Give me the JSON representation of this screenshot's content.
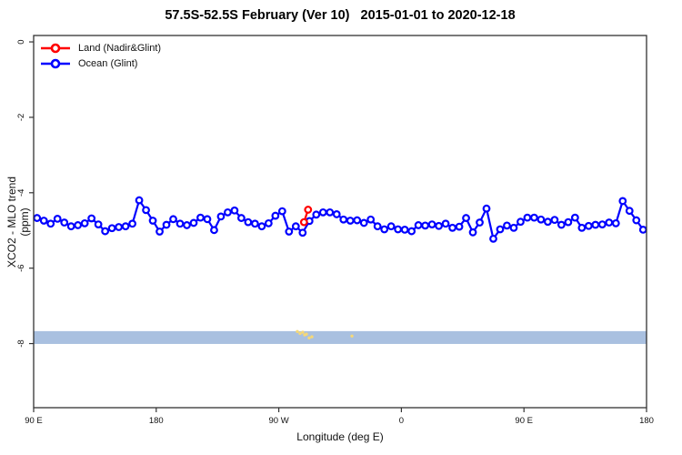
{
  "title": "57.5S-52.5S February (Ver 10)   2015-01-01 to 2020-12-18",
  "legend": {
    "items": [
      {
        "label": "Land (Nadir&Glint)",
        "color": "#ff0000",
        "marker": "open-circle-on-line"
      },
      {
        "label": "Ocean (Glint)",
        "color": "#0000ff",
        "marker": "open-circle-on-line"
      }
    ]
  },
  "chart_data": {
    "type": "line",
    "title": "57.5S-52.5S February (Ver 10)   2015-01-01 to 2020-12-18",
    "xlabel": "Longitude (deg E)",
    "ylabel": "XCO2 - MLO trend (ppm)",
    "xlim": [
      90,
      540
    ],
    "ylim": [
      -9.7,
      0.17
    ],
    "grid": false,
    "legend_position": "top-left-inside",
    "x_ticks": [
      {
        "value": 90,
        "label": "90 E"
      },
      {
        "value": 180,
        "label": "180"
      },
      {
        "value": 270,
        "label": "90 W"
      },
      {
        "value": 360,
        "label": "0"
      },
      {
        "value": 450,
        "label": "90 E"
      },
      {
        "value": 540,
        "label": "180"
      }
    ],
    "y_ticks": [
      {
        "value": 0,
        "label": "0"
      },
      {
        "value": -2,
        "label": "-2"
      },
      {
        "value": -4,
        "label": "-4"
      },
      {
        "value": -6,
        "label": "-6"
      },
      {
        "value": -8,
        "label": "-8"
      }
    ],
    "band": {
      "from": -7.67,
      "to": -8.01,
      "color": "#a9c0e0"
    },
    "scatter_dots": {
      "color": "#f5d878",
      "points": [
        [
          283.6,
          -7.68
        ],
        [
          285.6,
          -7.73
        ],
        [
          287.6,
          -7.7
        ],
        [
          289.0,
          -7.77
        ],
        [
          290.3,
          -7.75
        ],
        [
          292.3,
          -7.85
        ],
        [
          294.3,
          -7.82
        ],
        [
          323.7,
          -7.8
        ]
      ]
    },
    "series": [
      {
        "name": "Land (Nadir&Glint)",
        "color": "#ff0000",
        "marker": "open-circle",
        "x": [
          288.5,
          291.5
        ],
        "values": [
          -4.78,
          -4.45
        ]
      },
      {
        "name": "Ocean (Glint)",
        "color": "#0000ff",
        "marker": "open-circle",
        "x_start": 92.5,
        "x_step": 5,
        "values": [
          -4.67,
          -4.74,
          -4.82,
          -4.69,
          -4.79,
          -4.89,
          -4.86,
          -4.81,
          -4.68,
          -4.84,
          -5.02,
          -4.94,
          -4.91,
          -4.89,
          -4.82,
          -4.2,
          -4.46,
          -4.74,
          -5.03,
          -4.85,
          -4.7,
          -4.82,
          -4.86,
          -4.8,
          -4.66,
          -4.7,
          -4.99,
          -4.63,
          -4.52,
          -4.47,
          -4.67,
          -4.78,
          -4.82,
          -4.89,
          -4.81,
          -4.61,
          -4.49,
          -5.03,
          -4.89,
          -5.06,
          -4.75,
          -4.58,
          -4.52,
          -4.52,
          -4.57,
          -4.71,
          -4.74,
          -4.73,
          -4.8,
          -4.71,
          -4.89,
          -4.97,
          -4.89,
          -4.97,
          -4.98,
          -5.02,
          -4.86,
          -4.87,
          -4.84,
          -4.88,
          -4.82,
          -4.93,
          -4.9,
          -4.67,
          -5.05,
          -4.79,
          -4.42,
          -5.22,
          -4.97,
          -4.87,
          -4.93,
          -4.77,
          -4.66,
          -4.66,
          -4.71,
          -4.77,
          -4.72,
          -4.85,
          -4.78,
          -4.66,
          -4.93,
          -4.88,
          -4.85,
          -4.84,
          -4.79,
          -4.81,
          -4.22,
          -4.48,
          -4.73,
          -4.98
        ]
      }
    ]
  }
}
